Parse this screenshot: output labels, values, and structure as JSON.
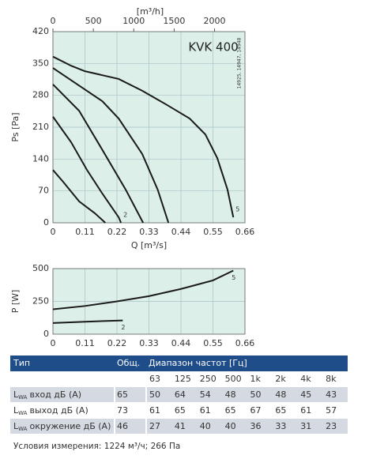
{
  "chart_data": [
    {
      "type": "line",
      "title": "KVK 400",
      "side_note": "14925, 14947, 14948",
      "xlabel": "Q [m³/s]",
      "ylabel": "Ps [Pa]",
      "x2label": "[m³/h]",
      "xlim": [
        0,
        0.66
      ],
      "xticks": [
        0,
        0.11,
        0.22,
        0.33,
        0.44,
        0.55,
        0.66
      ],
      "x2lim": [
        0,
        2376
      ],
      "x2ticks": [
        0,
        500,
        1000,
        1500,
        2000
      ],
      "ylim": [
        0,
        420
      ],
      "yticks": [
        0,
        70,
        140,
        210,
        280,
        350,
        420
      ],
      "grid": true,
      "series": [
        {
          "name": "5",
          "color": "#1a1a1a",
          "x": [
            0,
            0.0625,
            0.11,
            0.226,
            0.307,
            0.389,
            0.47,
            0.524,
            0.565,
            0.6,
            0.62
          ],
          "values": [
            365,
            345,
            333,
            316,
            290,
            260,
            229,
            194,
            142,
            73,
            12
          ]
        },
        {
          "color": "#1a1a1a",
          "x": [
            0,
            0.17,
            0.226,
            0.307,
            0.36,
            0.397
          ],
          "values": [
            340,
            267,
            229,
            151,
            73,
            0
          ]
        },
        {
          "color": "#1a1a1a",
          "x": [
            0,
            0.09,
            0.17,
            0.25,
            0.31
          ],
          "values": [
            304,
            246,
            160,
            73,
            0
          ]
        },
        {
          "name": "2",
          "color": "#1a1a1a",
          "x": [
            0,
            0.0625,
            0.117,
            0.17,
            0.226,
            0.234
          ],
          "values": [
            233,
            177,
            116,
            64,
            12,
            0
          ]
        },
        {
          "color": "#1a1a1a",
          "x": [
            0,
            0.035,
            0.09,
            0.144,
            0.18
          ],
          "values": [
            116,
            90,
            47,
            21,
            0
          ]
        }
      ]
    },
    {
      "type": "line",
      "ylabel": "P [W]",
      "xlim": [
        0,
        0.66
      ],
      "xticks": [
        0,
        0.11,
        0.22,
        0.33,
        0.44,
        0.55,
        0.66
      ],
      "ylim": [
        0,
        500
      ],
      "yticks": [
        0,
        250,
        500
      ],
      "grid": true,
      "series": [
        {
          "name": "5",
          "color": "#1a1a1a",
          "x": [
            0,
            0.11,
            0.22,
            0.33,
            0.44,
            0.55,
            0.62
          ],
          "values": [
            190,
            215,
            250,
            290,
            345,
            410,
            485
          ]
        },
        {
          "name": "2",
          "color": "#1a1a1a",
          "x": [
            0,
            0.11,
            0.24
          ],
          "values": [
            85,
            95,
            105
          ]
        }
      ]
    }
  ],
  "table": {
    "header": [
      "Тип",
      "Общ.",
      "Диапазон частот [Гц]"
    ],
    "freqs": [
      "63",
      "125",
      "250",
      "500",
      "1k",
      "2k",
      "4k",
      "8k"
    ],
    "rows": [
      {
        "label": {
          "l": "L",
          "sub": "WA",
          "text": "вход дБ (A)"
        },
        "values": [
          65,
          50,
          64,
          54,
          48,
          50,
          48,
          45,
          43
        ]
      },
      {
        "label": {
          "l": "L",
          "sub": "WA",
          "text": "выход дБ (A)"
        },
        "values": [
          73,
          61,
          65,
          61,
          65,
          67,
          65,
          61,
          57
        ]
      },
      {
        "label": {
          "l": "L",
          "sub": "WA",
          "text": "окружение дБ (A)"
        },
        "values": [
          46,
          27,
          41,
          40,
          40,
          36,
          33,
          31,
          23
        ]
      }
    ]
  },
  "footnote": "Условия измерения: 1224 м³/ч; 266 Па"
}
